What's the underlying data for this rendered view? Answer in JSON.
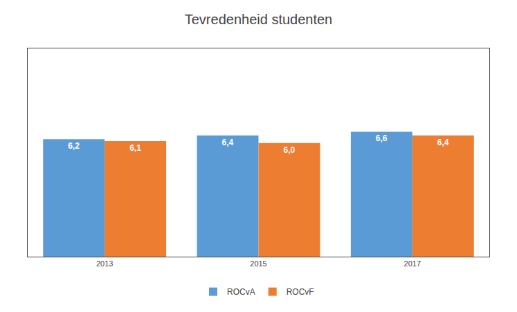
{
  "chart_data": {
    "type": "bar",
    "title": "Tevredenheid studenten",
    "categories": [
      "2013",
      "2015",
      "2017"
    ],
    "series": [
      {
        "name": "ROCvA",
        "color": "#5B9BD5",
        "values": [
          6.2,
          6.4,
          6.6
        ],
        "value_labels": [
          "6,2",
          "6,4",
          "6,6"
        ]
      },
      {
        "name": "ROCvF",
        "color": "#ED7D31",
        "values": [
          6.1,
          6.0,
          6.4
        ],
        "value_labels": [
          "6,1",
          "6,0",
          "6,4"
        ]
      }
    ],
    "ylim": [
      0,
      11.0
    ],
    "data_labels": true,
    "legend": "bottom",
    "grid": false,
    "tick_labels": "x"
  }
}
